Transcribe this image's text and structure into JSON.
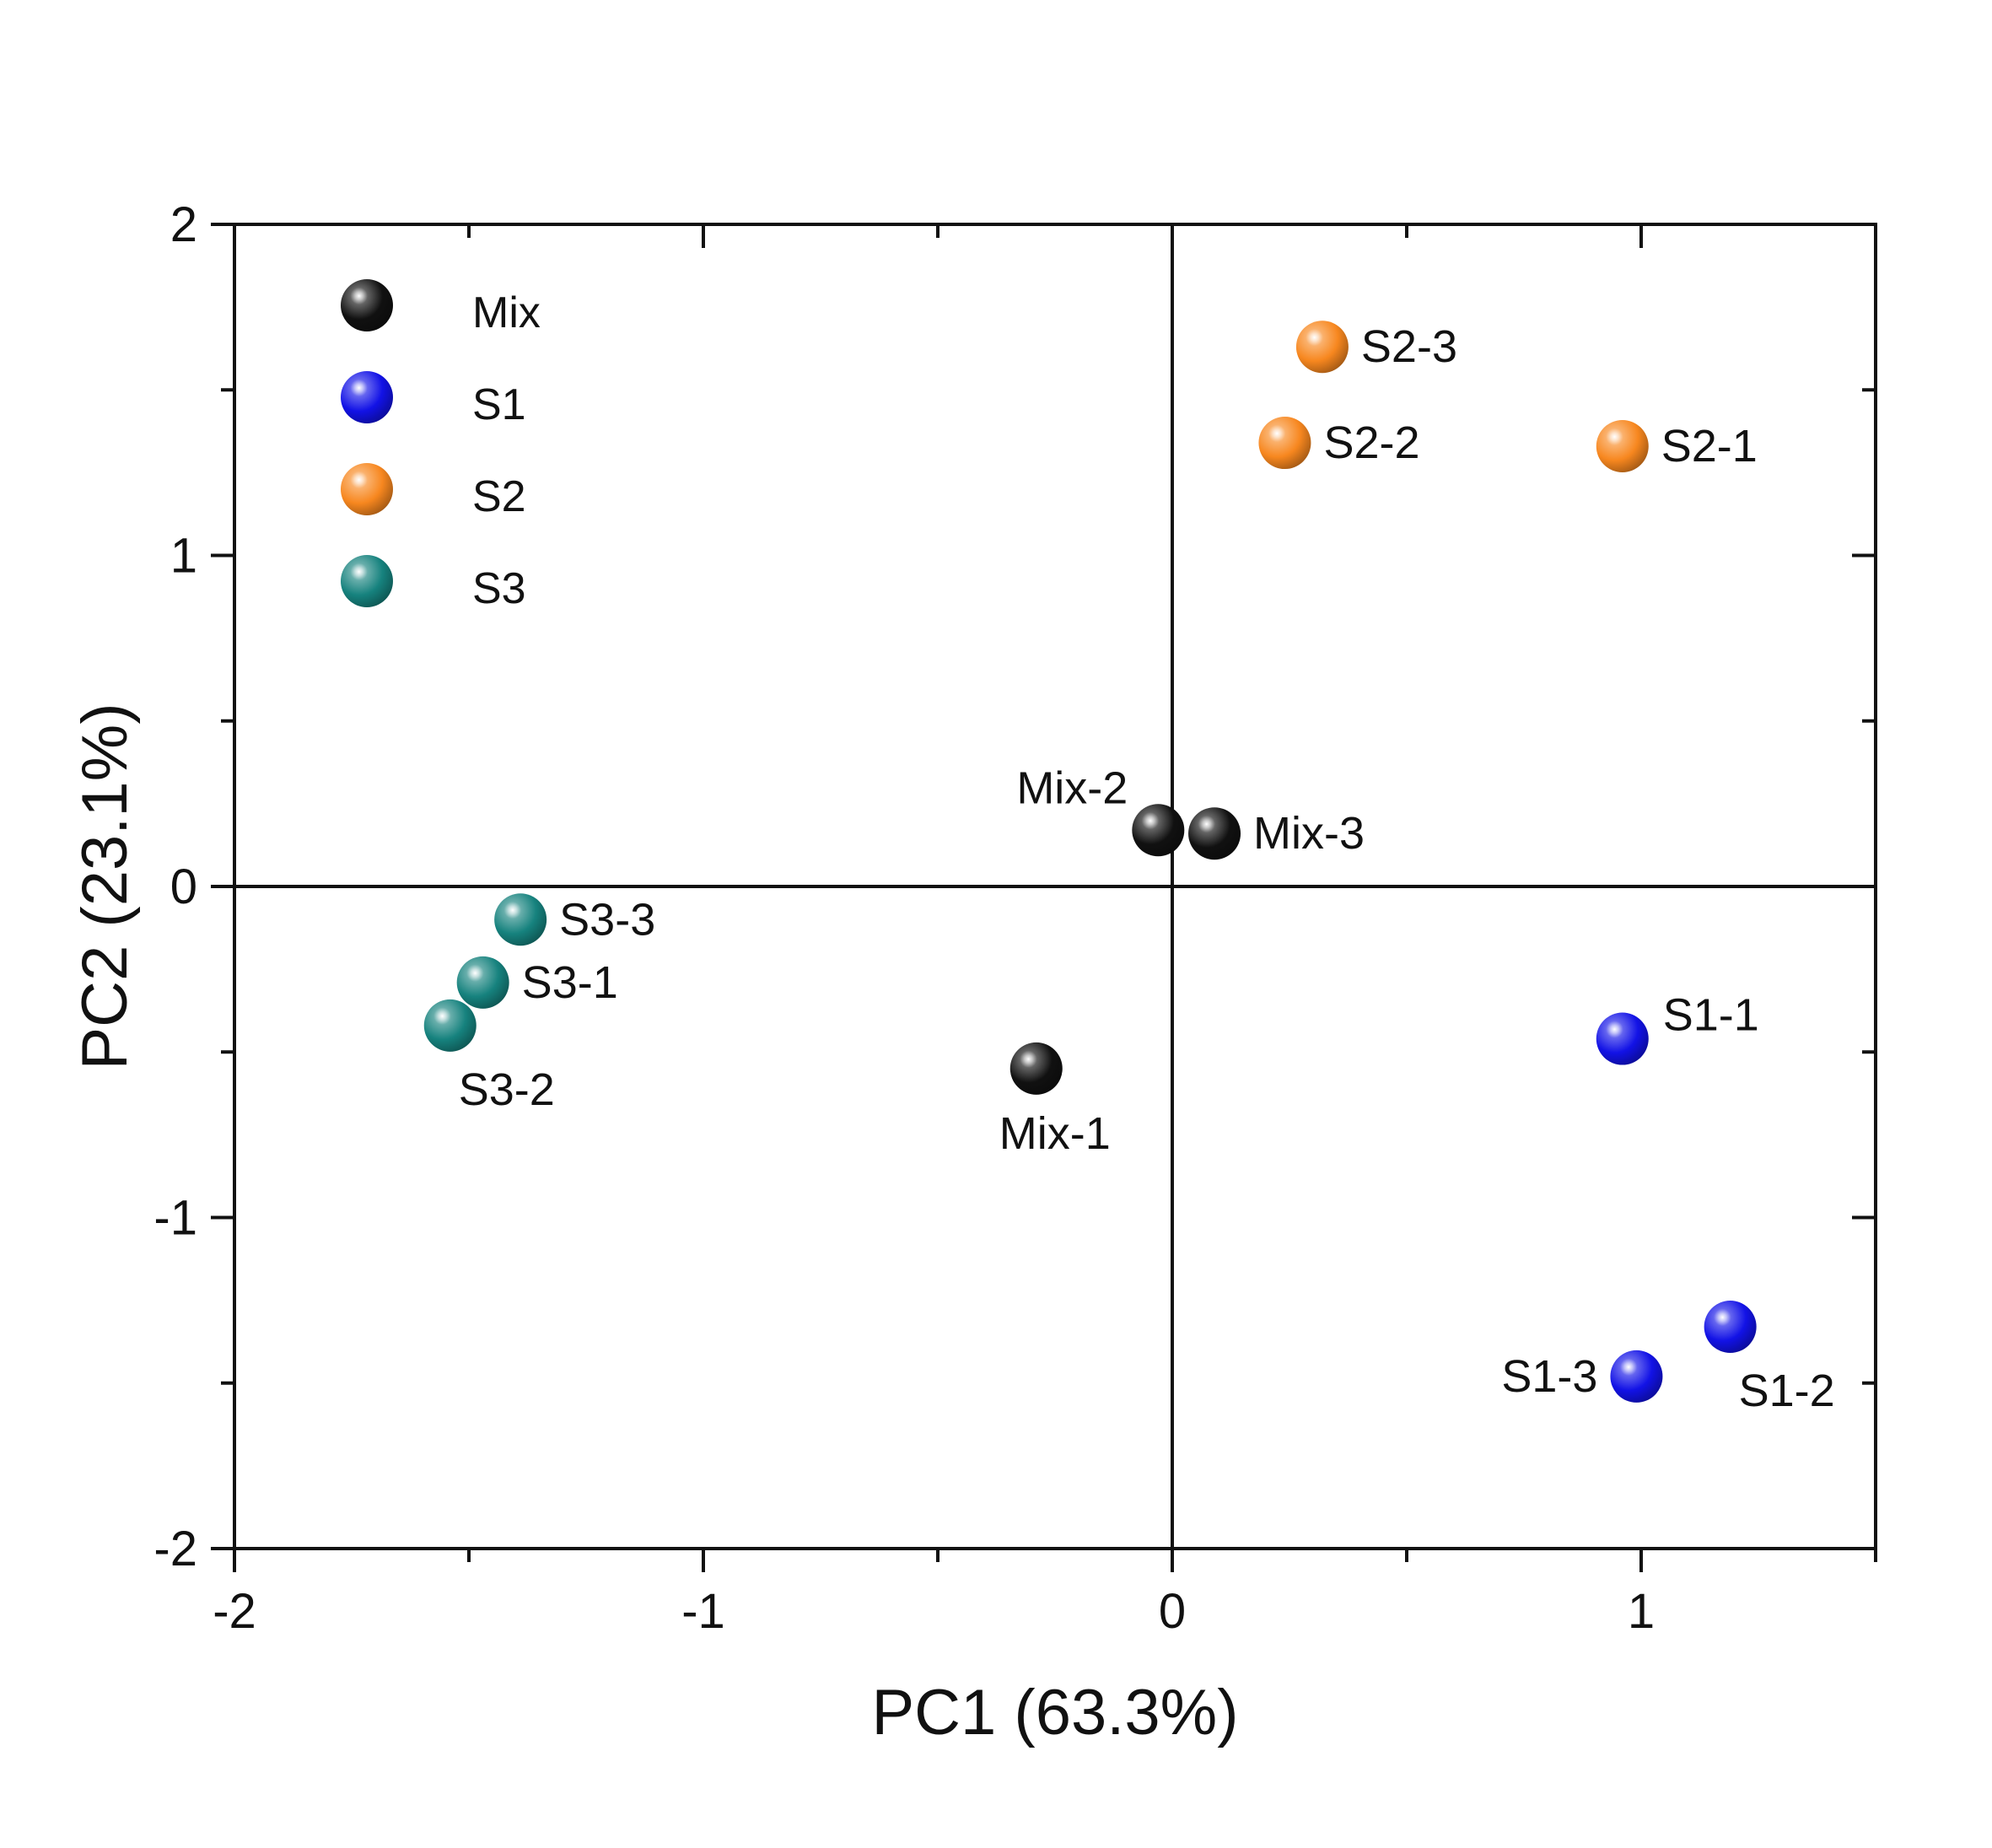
{
  "chart_data": {
    "type": "scatter",
    "xlabel": "PC1 (63.3%)",
    "ylabel": "PC2 (23.1%)",
    "xlim": [
      -2,
      1.5
    ],
    "ylim": [
      -2,
      2
    ],
    "x_ticks": [
      -2,
      -1,
      0,
      1
    ],
    "x_tick_labels": [
      "-2",
      "-1",
      "0",
      "1"
    ],
    "y_ticks": [
      -2,
      -1,
      0,
      1,
      2
    ],
    "y_tick_labels": [
      "-2",
      "-1",
      "0",
      "1",
      "2"
    ],
    "x_minor_ticks": [
      -1.5,
      -0.5,
      0.5,
      1.5
    ],
    "y_minor_ticks": [
      -1.5,
      -0.5,
      0.5,
      1.5
    ],
    "reference_lines": {
      "x": 0,
      "y": 0
    },
    "grid": false,
    "legend_position": "top-left",
    "series": [
      {
        "name": "Mix",
        "color": "#111111",
        "points": [
          {
            "label": "Mix-1",
            "x": -0.29,
            "y": -0.55,
            "label_anchor": "below"
          },
          {
            "label": "Mix-2",
            "x": -0.03,
            "y": 0.17,
            "label_anchor": "upper-left"
          },
          {
            "label": "Mix-3",
            "x": 0.09,
            "y": 0.16,
            "label_anchor": "right"
          }
        ]
      },
      {
        "name": "S1",
        "color": "#1212e6",
        "points": [
          {
            "label": "S1-1",
            "x": 0.96,
            "y": -0.46,
            "label_anchor": "upper-right"
          },
          {
            "label": "S1-2",
            "x": 1.19,
            "y": -1.33,
            "label_anchor": "lower-right"
          },
          {
            "label": "S1-3",
            "x": 0.99,
            "y": -1.48,
            "label_anchor": "left"
          }
        ]
      },
      {
        "name": "S2",
        "color": "#f7871f",
        "points": [
          {
            "label": "S2-1",
            "x": 0.96,
            "y": 1.33,
            "label_anchor": "right"
          },
          {
            "label": "S2-2",
            "x": 0.24,
            "y": 1.34,
            "label_anchor": "right"
          },
          {
            "label": "S2-3",
            "x": 0.32,
            "y": 1.63,
            "label_anchor": "right"
          }
        ]
      },
      {
        "name": "S3",
        "color": "#16827e",
        "points": [
          {
            "label": "S3-1",
            "x": -1.47,
            "y": -0.29,
            "label_anchor": "right"
          },
          {
            "label": "S3-2",
            "x": -1.54,
            "y": -0.42,
            "label_anchor": "lower-right"
          },
          {
            "label": "S3-3",
            "x": -1.39,
            "y": -0.1,
            "label_anchor": "right"
          }
        ]
      }
    ]
  }
}
